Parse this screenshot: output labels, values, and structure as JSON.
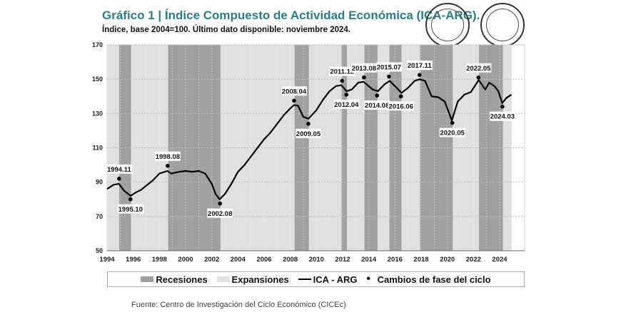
{
  "header": {
    "title": "Gráfico 1 | Índice Compuesto de Actividad Económica (ICA-ARG).",
    "subtitle": "Índice, base 2004=100. Último dato disponible: noviembre 2024."
  },
  "logos": [
    "BOLSA DE COMERCIO DE SANTA FE",
    "BOLSA DE COMERCIO DE ROSARIO"
  ],
  "chart_data": {
    "type": "line",
    "title": "Índice Compuesto de Actividad Económica (ICA-ARG)",
    "ylim": [
      50,
      170
    ],
    "yticks": [
      50,
      70,
      90,
      110,
      130,
      150,
      170
    ],
    "xlim": [
      1994,
      2025.9
    ],
    "xticks": [
      1994,
      1996,
      1998,
      2000,
      2002,
      2004,
      2006,
      2008,
      2010,
      2012,
      2014,
      2016,
      2018,
      2020,
      2022,
      2024
    ],
    "colors": {
      "recession": "#a0a0a0",
      "expansion": "#e0e0e0",
      "line": "#000000"
    },
    "recessions": [
      [
        1994.92,
        1995.83
      ],
      [
        1998.67,
        2002.67
      ],
      [
        2008.33,
        2009.42
      ],
      [
        2011.92,
        2012.33
      ],
      [
        2013.67,
        2014.67
      ],
      [
        2015.58,
        2016.5
      ],
      [
        2017.92,
        2020.42
      ],
      [
        2022.42,
        2024.25
      ]
    ],
    "expansions": [
      [
        1994,
        1994.92
      ],
      [
        1995.83,
        1998.67
      ],
      [
        2002.67,
        2008.33
      ],
      [
        2009.42,
        2011.92
      ],
      [
        2012.33,
        2013.67
      ],
      [
        2014.67,
        2015.58
      ],
      [
        2016.5,
        2017.92
      ],
      [
        2020.42,
        2022.42
      ],
      [
        2024.25,
        2024.92
      ]
    ],
    "series": [
      {
        "name": "ICA - ARG",
        "x": [
          1994,
          1994.5,
          1994.9,
          1995.3,
          1995.8,
          1996.2,
          1996.6,
          1997,
          1997.5,
          1998,
          1998.6,
          1998.9,
          1999.5,
          2000,
          2000.5,
          2001,
          2001.5,
          2002,
          2002.3,
          2002.6,
          2003,
          2003.5,
          2004,
          2004.5,
          2005,
          2005.5,
          2006,
          2006.5,
          2007,
          2007.5,
          2008,
          2008.3,
          2008.6,
          2009,
          2009.4,
          2010,
          2010.5,
          2011,
          2011.5,
          2011.9,
          2012.3,
          2012.7,
          2013.2,
          2013.6,
          2014.3,
          2014.7,
          2015.2,
          2015.6,
          2016,
          2016.5,
          2017,
          2017.5,
          2017.9,
          2018.3,
          2018.8,
          2019.3,
          2019.8,
          2020.35,
          2020.8,
          2021.3,
          2021.8,
          2022.4,
          2022.9,
          2023.2,
          2023.6,
          2023.9,
          2024.2,
          2024.5,
          2024.9
        ],
        "y": [
          86,
          88.5,
          89,
          85,
          82,
          84,
          85.5,
          88,
          91,
          95,
          96.5,
          95,
          96,
          96.5,
          96,
          96.5,
          95,
          89,
          83,
          80,
          83,
          89,
          96,
          100,
          105,
          110,
          115,
          119,
          124,
          129,
          133,
          135,
          134.5,
          128,
          127,
          132,
          138,
          143,
          146,
          146.5,
          143,
          144,
          148,
          148.5,
          144,
          143,
          147,
          149,
          146,
          142,
          145,
          149,
          150,
          149,
          140,
          139.5,
          137,
          126,
          137,
          141,
          142.5,
          149.5,
          144,
          148,
          146,
          143,
          136,
          139,
          141
        ]
      }
    ],
    "turning_points": [
      {
        "label": "1994.11",
        "x": 1994.92,
        "y": 92,
        "pos": "above"
      },
      {
        "label": "1995.10",
        "x": 1995.79,
        "y": 80,
        "pos": "below"
      },
      {
        "label": "1998.08",
        "x": 1998.63,
        "y": 99.5,
        "pos": "above"
      },
      {
        "label": "2002.08",
        "x": 2002.63,
        "y": 77.5,
        "pos": "below"
      },
      {
        "label": "2008.04",
        "x": 2008.29,
        "y": 137.5,
        "pos": "above"
      },
      {
        "label": "2009.05",
        "x": 2009.38,
        "y": 124,
        "pos": "below"
      },
      {
        "label": "2011.12",
        "x": 2011.96,
        "y": 149,
        "pos": "above"
      },
      {
        "label": "2012.04",
        "x": 2012.29,
        "y": 141,
        "pos": "below"
      },
      {
        "label": "2013.08",
        "x": 2013.63,
        "y": 151,
        "pos": "above"
      },
      {
        "label": "2014.08",
        "x": 2014.63,
        "y": 140.5,
        "pos": "below"
      },
      {
        "label": "2015.07",
        "x": 2015.54,
        "y": 151.5,
        "pos": "above"
      },
      {
        "label": "2016.06",
        "x": 2016.46,
        "y": 140,
        "pos": "below"
      },
      {
        "label": "2017.11",
        "x": 2017.88,
        "y": 152.5,
        "pos": "above"
      },
      {
        "label": "2020.05",
        "x": 2020.38,
        "y": 124.5,
        "pos": "below"
      },
      {
        "label": "2022.05",
        "x": 2022.38,
        "y": 151,
        "pos": "above"
      },
      {
        "label": "2024.03",
        "x": 2024.21,
        "y": 134,
        "pos": "below"
      }
    ],
    "legend": {
      "placement": "bottom",
      "items": [
        "Recesiones",
        "Expansiones",
        "ICA - ARG",
        "Cambios de fase del ciclo"
      ]
    }
  },
  "source": "Fuente: Centro de Investigación del Ciclo Económico (CICEc)"
}
